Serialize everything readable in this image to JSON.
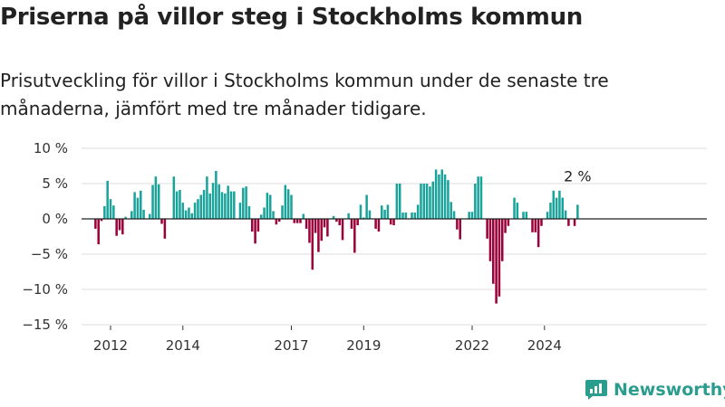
{
  "title": "Priserna på villor steg i Stockholms kommun",
  "subtitle": "Prisutveckling för villor i Stockholms kommun under de senaste tre månaderna, jämfört med tre månader tidigare.",
  "brand": {
    "name": "Newsworthy",
    "logo_icon": "bar-chart-icon"
  },
  "colors": {
    "positive": "#1aa39a",
    "negative": "#9b0038",
    "zero_line": "#222222",
    "grid": "#dddddd",
    "brand": "#2a9d8f"
  },
  "chart_data": {
    "type": "bar",
    "title": "Priserna på villor steg i Stockholms kommun",
    "xlabel": "",
    "ylabel": "",
    "ylim": [
      -15,
      10
    ],
    "yticks": [
      10,
      5,
      0,
      -5,
      -10,
      -15
    ],
    "ytick_labels": [
      "10 %",
      "5 %",
      "0 %",
      "−5 %",
      "−10 %",
      "−15 %"
    ],
    "xtick_years": [
      2012,
      2014,
      2017,
      2019,
      2022,
      2024
    ],
    "xtick_labels": [
      "2012",
      "2014",
      "2017",
      "2019",
      "2022",
      "2024"
    ],
    "grid": true,
    "annotation": {
      "text": "2 %",
      "target": "last"
    },
    "x_start": "2011-08",
    "values": [
      -1.4,
      -3.6,
      -0.3,
      1.8,
      5.4,
      2.8,
      1.9,
      -2.4,
      -1.6,
      -2.2,
      0.3,
      0.0,
      1.1,
      3.8,
      3.0,
      4.0,
      1.3,
      0.0,
      0.7,
      4.8,
      6.0,
      4.9,
      -0.7,
      -2.8,
      0.0,
      0.0,
      6.0,
      3.9,
      4.1,
      2.3,
      1.2,
      1.6,
      0.8,
      2.3,
      2.8,
      3.4,
      4.1,
      6.0,
      3.6,
      5.1,
      6.8,
      4.9,
      3.8,
      3.6,
      4.7,
      3.9,
      3.9,
      0.0,
      2.3,
      4.4,
      4.6,
      1.8,
      -1.8,
      -3.5,
      -1.8,
      0.6,
      1.6,
      3.7,
      3.4,
      1.1,
      -0.8,
      -0.4,
      1.9,
      4.8,
      4.2,
      3.4,
      -0.6,
      -0.6,
      -0.6,
      0.7,
      -1.4,
      -3.4,
      -7.2,
      -2.0,
      -4.7,
      -3.1,
      -1.2,
      -2.5,
      0.0,
      0.4,
      -0.4,
      -0.9,
      -3.0,
      0.0,
      0.8,
      -1.4,
      -4.8,
      -0.9,
      2.0,
      0.2,
      3.4,
      1.2,
      0.0,
      -1.4,
      -1.8,
      1.9,
      1.3,
      2.0,
      -0.8,
      -0.9,
      5.0,
      5.0,
      0.9,
      0.9,
      0.0,
      0.9,
      0.9,
      2.0,
      5.0,
      5.0,
      5.0,
      4.6,
      5.3,
      7.0,
      6.3,
      7.0,
      6.3,
      5.5,
      2.4,
      1.1,
      -1.5,
      -2.9,
      0.0,
      0.0,
      1.0,
      1.0,
      5.0,
      6.0,
      6.0,
      0.0,
      -2.8,
      -6.0,
      -9.2,
      -12.0,
      -11.0,
      -6.0,
      -2.0,
      -1.0,
      0.0,
      3.0,
      2.3,
      0.0,
      1.0,
      1.0,
      0.0,
      -1.9,
      -1.9,
      -4.0,
      -1.0,
      0.0,
      1.0,
      2.3,
      4.0,
      3.0,
      4.0,
      3.0,
      1.2,
      -1.0,
      0.0,
      -1.0,
      2.0
    ]
  }
}
